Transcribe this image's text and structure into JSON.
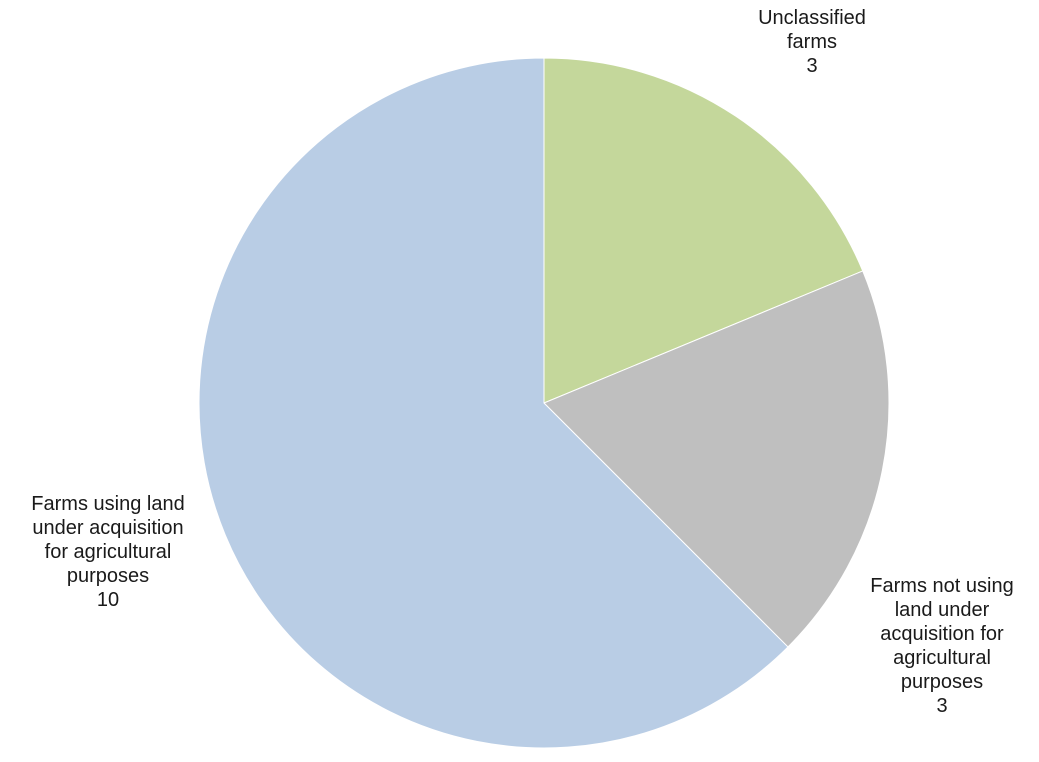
{
  "chart_data": {
    "type": "pie",
    "slices": [
      {
        "label_lines": [
          "Unclassified",
          "farms"
        ],
        "value": 3,
        "value_text": "3",
        "color": "#c4d79b"
      },
      {
        "label_lines": [
          "Farms not using",
          "land under",
          "acquisition for",
          "agricultural",
          "purposes"
        ],
        "value": 3,
        "value_text": "3",
        "color": "#bfbfbf"
      },
      {
        "label_lines": [
          "Farms using land",
          "under acquisition",
          "for agricultural",
          "purposes"
        ],
        "value": 10,
        "value_text": "10",
        "color": "#b9cde5"
      }
    ],
    "start_angle": "12 o'clock",
    "direction": "clockwise"
  }
}
